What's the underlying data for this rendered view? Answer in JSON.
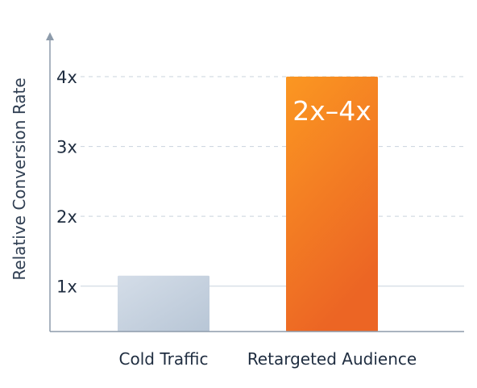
{
  "chart_data": {
    "type": "bar",
    "title": "",
    "xlabel": "",
    "ylabel": "Relative Conversion Rate",
    "categories": [
      "Cold Traffic",
      "Retargeted Audience"
    ],
    "values": [
      1.15,
      4.0
    ],
    "data_labels": [
      "",
      "2x–4x"
    ],
    "ylim": [
      0.35,
      4.0
    ],
    "yticks": [
      1,
      2,
      3,
      4
    ],
    "ytick_labels": [
      "1x",
      "2x",
      "3x",
      "4x"
    ],
    "grid": true,
    "colors": {
      "cold": [
        "#d4dde8",
        "#b8c6d6"
      ],
      "retargeted": [
        "#fb9722",
        "#ec6524"
      ],
      "grid": "#c9d3de",
      "axis": "#8d9bab"
    }
  }
}
